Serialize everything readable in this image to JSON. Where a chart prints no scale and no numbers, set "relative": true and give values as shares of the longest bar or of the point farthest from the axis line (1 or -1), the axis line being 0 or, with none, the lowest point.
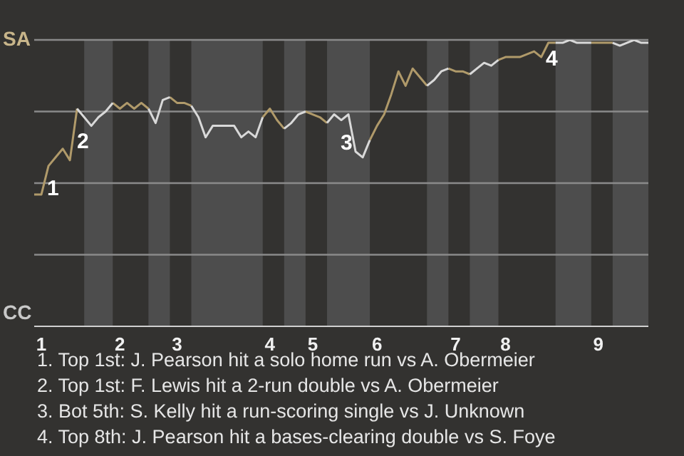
{
  "chart_data": {
    "type": "line",
    "relative": true,
    "annotations": [
      "SA",
      "CC",
      "1",
      "2",
      "3",
      "4",
      "1. Top 1st: J. Pearson hit a solo home run vs A. Obermeier",
      "2. Top 1st: F. Lewis hit a 2-run double vs A. Obermeier",
      "3. Bot 5th: S. Kelly hit a run-scoring single vs J. Unknown",
      "4. Top 8th: J. Pearson hit a bases-clearing double vs S. Foye"
    ],
    "categories": [
      null,
      "1",
      null,
      null,
      null,
      null,
      null,
      null,
      null,
      null,
      null,
      null,
      "2",
      null,
      null,
      null,
      null,
      null,
      null,
      null,
      "3",
      null,
      null,
      null,
      null,
      null,
      null,
      null,
      null,
      null,
      null,
      null,
      null,
      "4",
      null,
      null,
      null,
      null,
      null,
      "5",
      null,
      null,
      null,
      null,
      null,
      null,
      null,
      null,
      "6",
      null,
      null,
      null,
      null,
      null,
      null,
      null,
      null,
      null,
      null,
      "7",
      null,
      null,
      null,
      null,
      null,
      null,
      "8",
      null,
      null,
      null,
      null,
      null,
      null,
      null,
      null,
      null,
      null,
      null,
      null,
      "9",
      null,
      null,
      null,
      null,
      null,
      null,
      null
    ],
    "grid": "y",
    "series": [
      {
        "color": "#b09a6a",
        "values": [
          0.46,
          0.46,
          0.56,
          0.59,
          0.62,
          0.58,
          0.76,
          null,
          null,
          null,
          null,
          0.78,
          0.76,
          0.78,
          0.76,
          0.78,
          0.76,
          null,
          null,
          0.8,
          0.78,
          0.78,
          0.77,
          null,
          null,
          null,
          null,
          null,
          null,
          null,
          null,
          null,
          0.73,
          0.76,
          0.72,
          0.69,
          null,
          null,
          0.75,
          0.74,
          0.73,
          0.71,
          null,
          null,
          null,
          null,
          null,
          0.65,
          0.7,
          0.74,
          0.81,
          0.89,
          0.84,
          0.9,
          0.87,
          0.84,
          null,
          null,
          0.9,
          0.89,
          0.89,
          0.88,
          null,
          null,
          null,
          0.93,
          0.94,
          0.94,
          0.94,
          0.95,
          0.96,
          0.94,
          0.99,
          0.99,
          null,
          null,
          null,
          null,
          0.99,
          0.99,
          0.99,
          0.99,
          null,
          null,
          null,
          null,
          null
        ]
      },
      {
        "color": "#d9d9d9",
        "values": [
          null,
          null,
          null,
          null,
          null,
          null,
          0.76,
          0.73,
          0.7,
          0.73,
          0.75,
          0.78,
          null,
          null,
          null,
          null,
          0.76,
          0.71,
          0.79,
          0.8,
          null,
          null,
          0.77,
          0.73,
          0.66,
          0.7,
          0.7,
          0.7,
          0.7,
          0.66,
          0.68,
          0.66,
          0.73,
          null,
          null,
          0.69,
          0.71,
          0.74,
          0.75,
          null,
          null,
          0.71,
          0.74,
          0.72,
          0.74,
          0.61,
          0.59,
          0.65,
          null,
          null,
          null,
          null,
          null,
          null,
          null,
          0.84,
          0.86,
          0.89,
          0.9,
          null,
          null,
          0.88,
          0.9,
          0.92,
          0.91,
          0.93,
          null,
          null,
          null,
          null,
          null,
          null,
          null,
          0.99,
          0.99,
          1,
          0.99,
          0.99,
          0.99,
          null,
          null,
          0.99,
          0.98,
          0.99,
          1,
          0.99,
          0.99
        ]
      }
    ]
  }
}
